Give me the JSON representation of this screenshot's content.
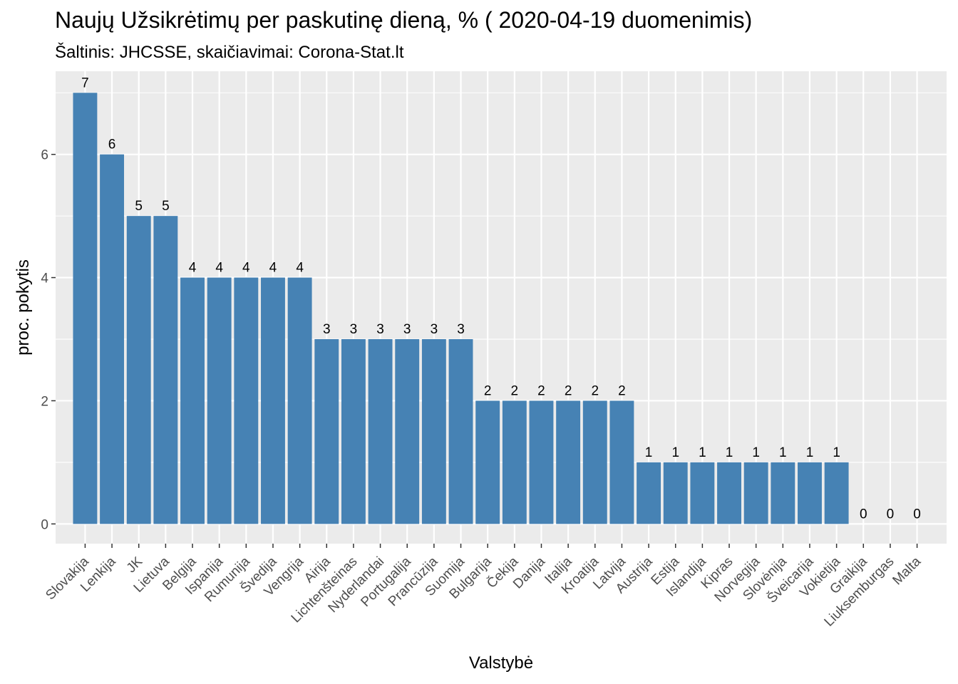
{
  "chart_data": {
    "type": "bar",
    "title": "Naujų Užsikrėtimų per paskutinę dieną, % ( 2020-04-19 duomenimis)",
    "subtitle": "Šaltinis: JHCSSE, skaičiavimai: Corona-Stat.lt",
    "xlabel": "Valstybė",
    "ylabel": "proc. pokytis",
    "categories": [
      "Slovakija",
      "Lenkija",
      "JK",
      "Lietuva",
      "Belgija",
      "Ispanija",
      "Rumunija",
      "Švedija",
      "Vengrija",
      "Airija",
      "Lichtenšteinas",
      "Nyderlandai",
      "Portugalija",
      "Prancūzija",
      "Suomija",
      "Bulgarija",
      "Čekija",
      "Danija",
      "Italija",
      "Kroatija",
      "Latvija",
      "Austrija",
      "Estija",
      "Islandija",
      "Kipras",
      "Norvegija",
      "Slovėnija",
      "Šveicarija",
      "Vokietija",
      "Graikija",
      "Liuksemburgas",
      "Malta"
    ],
    "values": [
      7,
      6,
      5,
      5,
      4,
      4,
      4,
      4,
      4,
      3,
      3,
      3,
      3,
      3,
      3,
      2,
      2,
      2,
      2,
      2,
      2,
      1,
      1,
      1,
      1,
      1,
      1,
      1,
      1,
      0,
      0,
      0
    ],
    "ylim": [
      -0.32,
      7.35
    ],
    "yticks": [
      0,
      2,
      4,
      6
    ],
    "grid": true,
    "bar_color": "#4682B4",
    "panel_background": "#EBEBEB",
    "gridline_color": "#FFFFFF"
  }
}
